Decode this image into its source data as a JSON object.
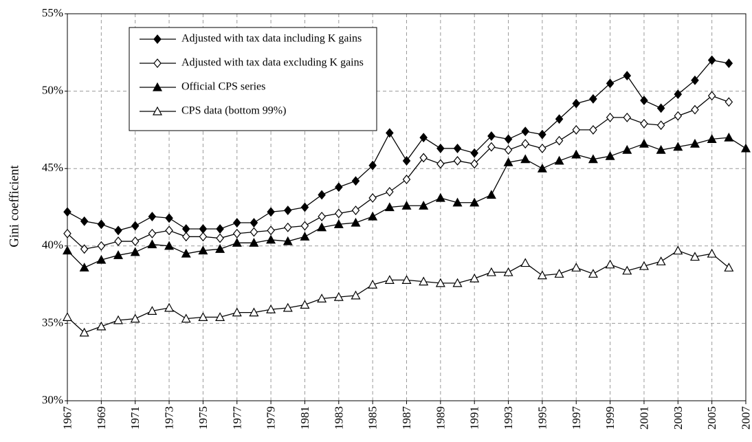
{
  "chart_data": {
    "type": "line",
    "ylabel": "Gini coefficient",
    "x": [
      1967,
      1968,
      1969,
      1970,
      1971,
      1972,
      1973,
      1974,
      1975,
      1976,
      1977,
      1978,
      1979,
      1980,
      1981,
      1982,
      1983,
      1984,
      1985,
      1986,
      1987,
      1988,
      1989,
      1990,
      1991,
      1992,
      1993,
      1994,
      1995,
      1996,
      1997,
      1998,
      1999,
      2000,
      2001,
      2002,
      2003,
      2004,
      2005,
      2006,
      2007
    ],
    "xlim": [
      1967,
      2007
    ],
    "xticks": [
      1967,
      1969,
      1971,
      1973,
      1975,
      1977,
      1979,
      1981,
      1983,
      1985,
      1987,
      1989,
      1991,
      1993,
      1995,
      1997,
      1999,
      2001,
      2003,
      2005,
      2007
    ],
    "ylim": [
      30,
      55
    ],
    "yticks": [
      {
        "value": 30,
        "label": "30%"
      },
      {
        "value": 35,
        "label": "35%"
      },
      {
        "value": 40,
        "label": "40%"
      },
      {
        "value": 45,
        "label": "45%"
      },
      {
        "value": 50,
        "label": "50%"
      },
      {
        "value": 55,
        "label": "55%"
      }
    ],
    "grid": true,
    "legend": "upper left",
    "series": [
      {
        "name": "Adjusted with tax data including K gains",
        "color": "#000000",
        "marker": "diamond",
        "marker_fill": "#000000",
        "values": [
          42.2,
          41.6,
          41.4,
          41.0,
          41.3,
          41.9,
          41.8,
          41.1,
          41.1,
          41.1,
          41.5,
          41.5,
          42.2,
          42.3,
          42.5,
          43.3,
          43.8,
          44.2,
          45.2,
          47.3,
          45.5,
          47.0,
          46.3,
          46.3,
          46.0,
          47.1,
          46.9,
          47.4,
          47.2,
          48.2,
          49.2,
          49.5,
          50.5,
          51.0,
          49.4,
          48.9,
          49.8,
          50.7,
          52.0,
          51.8,
          null
        ]
      },
      {
        "name": "Adjusted with tax data excluding K gains",
        "color": "#000000",
        "marker": "diamond",
        "marker_fill": "#ffffff",
        "values": [
          40.8,
          39.8,
          40.0,
          40.3,
          40.3,
          40.8,
          41.0,
          40.6,
          40.6,
          40.5,
          40.8,
          40.9,
          41.0,
          41.2,
          41.3,
          41.9,
          42.1,
          42.3,
          43.1,
          43.5,
          44.3,
          45.7,
          45.3,
          45.5,
          45.3,
          46.4,
          46.2,
          46.6,
          46.3,
          46.8,
          47.5,
          47.5,
          48.3,
          48.3,
          47.9,
          47.8,
          48.4,
          48.8,
          49.7,
          49.3,
          null
        ]
      },
      {
        "name": "Official CPS series",
        "color": "#000000",
        "marker": "triangle",
        "marker_fill": "#000000",
        "values": [
          39.7,
          38.6,
          39.1,
          39.4,
          39.6,
          40.1,
          40.0,
          39.5,
          39.7,
          39.8,
          40.2,
          40.2,
          40.4,
          40.3,
          40.6,
          41.2,
          41.4,
          41.5,
          41.9,
          42.5,
          42.6,
          42.6,
          43.1,
          42.8,
          42.8,
          43.3,
          45.4,
          45.6,
          45.0,
          45.5,
          45.9,
          45.6,
          45.8,
          46.2,
          46.6,
          46.2,
          46.4,
          46.6,
          46.9,
          47.0,
          46.3
        ]
      },
      {
        "name": "CPS data (bottom 99%)",
        "color": "#000000",
        "marker": "triangle",
        "marker_fill": "#ffffff",
        "values": [
          35.4,
          34.4,
          34.8,
          35.2,
          35.3,
          35.8,
          36.0,
          35.3,
          35.4,
          35.4,
          35.7,
          35.7,
          35.9,
          36.0,
          36.2,
          36.6,
          36.7,
          36.8,
          37.5,
          37.8,
          37.8,
          37.7,
          37.6,
          37.6,
          37.9,
          38.3,
          38.3,
          38.9,
          38.1,
          38.2,
          38.6,
          38.2,
          38.8,
          38.4,
          38.7,
          39.0,
          39.7,
          39.3,
          39.5,
          38.6,
          null
        ]
      }
    ]
  }
}
